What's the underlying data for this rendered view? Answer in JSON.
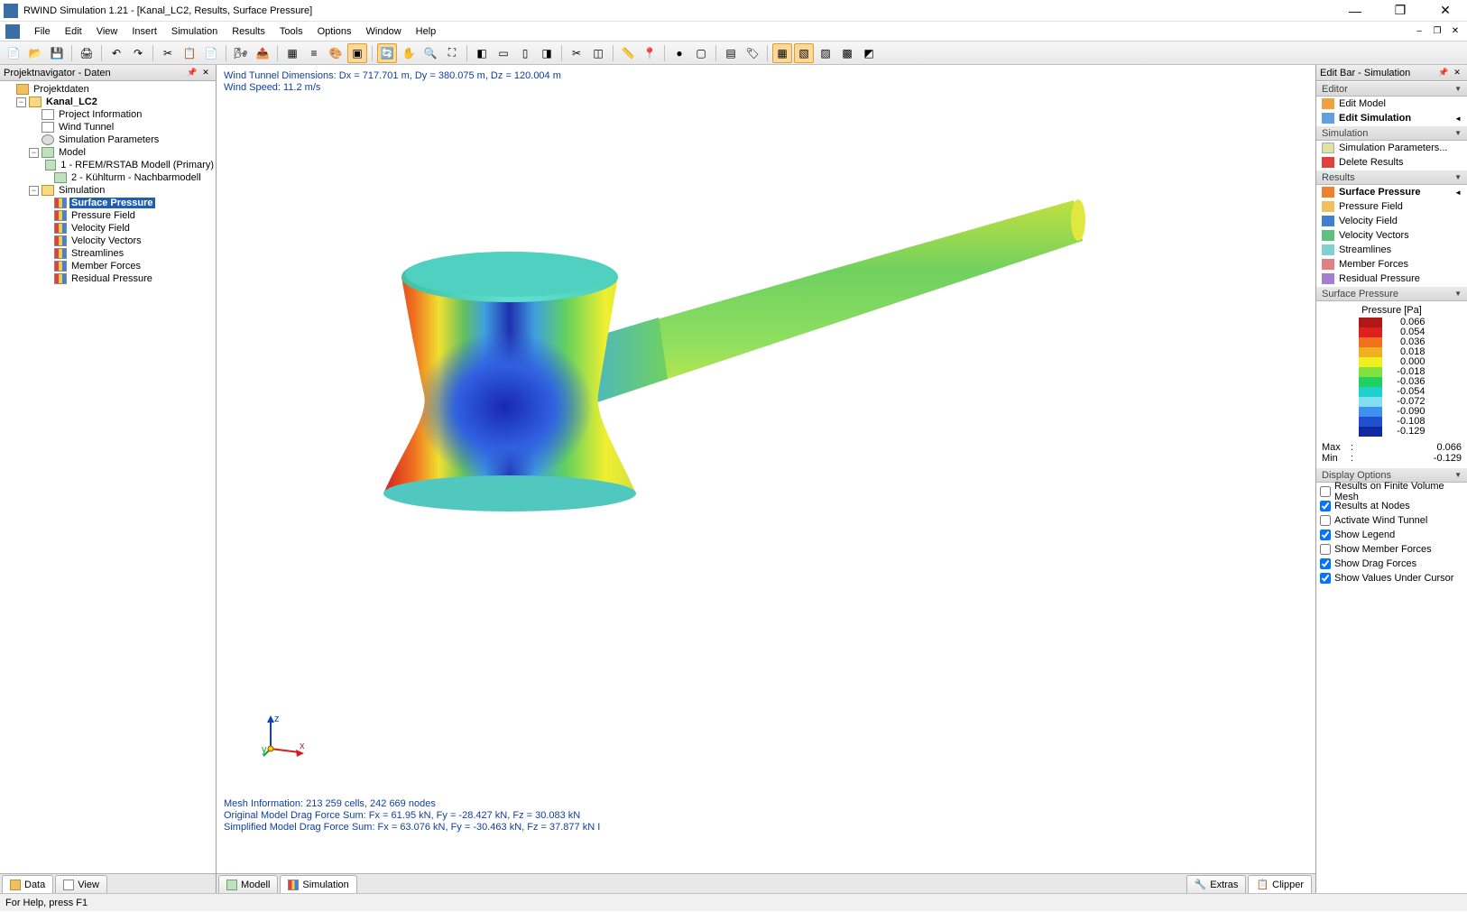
{
  "titlebar": {
    "app_name": "RWIND Simulation 1.21 - [Kanal_LC2, Results, Surface Pressure]"
  },
  "menus": [
    "File",
    "Edit",
    "View",
    "Insert",
    "Simulation",
    "Results",
    "Tools",
    "Options",
    "Window",
    "Help"
  ],
  "left_panel": {
    "title": "Projektnavigator - Daten",
    "tabs": [
      {
        "label": "Data",
        "active": true
      },
      {
        "label": "View",
        "active": false
      }
    ]
  },
  "tree": [
    {
      "depth": 0,
      "exp": "",
      "icon": "folder",
      "label": "Projektdaten"
    },
    {
      "depth": 1,
      "exp": "-",
      "icon": "folder-open",
      "label": "Kanal_LC2",
      "bold": true
    },
    {
      "depth": 2,
      "exp": "",
      "icon": "page",
      "label": "Project Information"
    },
    {
      "depth": 2,
      "exp": "",
      "icon": "page",
      "label": "Wind Tunnel"
    },
    {
      "depth": 2,
      "exp": "",
      "icon": "gear",
      "label": "Simulation Parameters"
    },
    {
      "depth": 2,
      "exp": "-",
      "icon": "cube",
      "label": "Model"
    },
    {
      "depth": 3,
      "exp": "",
      "icon": "cube",
      "label": "1 - RFEM/RSTAB Modell (Primary)"
    },
    {
      "depth": 3,
      "exp": "",
      "icon": "cube",
      "label": "2 - Kühlturm - Nachbarmodell"
    },
    {
      "depth": 2,
      "exp": "-",
      "icon": "folder-open",
      "label": "Simulation"
    },
    {
      "depth": 3,
      "exp": "",
      "icon": "bars",
      "label": "Surface Pressure",
      "selected": true,
      "bold": true
    },
    {
      "depth": 3,
      "exp": "",
      "icon": "bars",
      "label": "Pressure Field"
    },
    {
      "depth": 3,
      "exp": "",
      "icon": "bars",
      "label": "Velocity Field"
    },
    {
      "depth": 3,
      "exp": "",
      "icon": "bars",
      "label": "Velocity Vectors"
    },
    {
      "depth": 3,
      "exp": "",
      "icon": "bars",
      "label": "Streamlines"
    },
    {
      "depth": 3,
      "exp": "",
      "icon": "bars",
      "label": "Member Forces"
    },
    {
      "depth": 3,
      "exp": "",
      "icon": "bars",
      "label": "Residual Pressure"
    }
  ],
  "viewport": {
    "info_top": [
      "Wind Tunnel Dimensions: Dx = 717.701 m, Dy = 380.075 m, Dz = 120.004 m",
      "Wind Speed: 11.2 m/s"
    ],
    "info_bottom": [
      "Mesh Information: 213 259 cells, 242 669 nodes",
      "Original Model Drag Force Sum: Fx = 61.95 kN, Fy = -28.427 kN, Fz = 30.083 kN",
      "Simplified Model Drag Force Sum: Fx = 63.076 kN, Fy = -30.463 kN, Fz = 37.877 kN I"
    ],
    "axis": {
      "x": "x",
      "y": "y",
      "z": "z"
    }
  },
  "vp_tabs": [
    {
      "label": "Modell",
      "active": false
    },
    {
      "label": "Simulation",
      "active": true
    }
  ],
  "right_panel": {
    "title": "Edit Bar - Simulation",
    "sections": {
      "editor": {
        "title": "Editor",
        "items": [
          {
            "icon": "edit",
            "label": "Edit Model"
          },
          {
            "icon": "sim",
            "label": "Edit Simulation",
            "bold": true,
            "arrow": true
          }
        ]
      },
      "simulation": {
        "title": "Simulation",
        "items": [
          {
            "icon": "params",
            "label": "Simulation Parameters..."
          },
          {
            "icon": "del",
            "label": "Delete Results"
          }
        ]
      },
      "results": {
        "title": "Results",
        "items": [
          {
            "icon": "surf",
            "label": "Surface Pressure",
            "bold": true,
            "arrow": true
          },
          {
            "icon": "pfield",
            "label": "Pressure Field"
          },
          {
            "icon": "vfield",
            "label": "Velocity Field"
          },
          {
            "icon": "vvec",
            "label": "Velocity Vectors"
          },
          {
            "icon": "stream",
            "label": "Streamlines"
          },
          {
            "icon": "member",
            "label": "Member Forces"
          },
          {
            "icon": "resid",
            "label": "Residual Pressure"
          }
        ]
      }
    },
    "legend": {
      "section_title": "Surface Pressure",
      "title": "Pressure [Pa]",
      "stops": [
        {
          "color": "#b01818",
          "value": "0.066"
        },
        {
          "color": "#e02020",
          "value": "0.054"
        },
        {
          "color": "#f07020",
          "value": "0.036"
        },
        {
          "color": "#f0b020",
          "value": "0.018"
        },
        {
          "color": "#f0f020",
          "value": "0.000"
        },
        {
          "color": "#80e040",
          "value": "-0.018"
        },
        {
          "color": "#20d060",
          "value": "-0.036"
        },
        {
          "color": "#20d0d0",
          "value": "-0.054"
        },
        {
          "color": "#80e0f0",
          "value": "-0.072"
        },
        {
          "color": "#4090f0",
          "value": "-0.090"
        },
        {
          "color": "#2050d0",
          "value": "-0.108"
        },
        {
          "color": "#1028a0",
          "value": "-0.129"
        }
      ],
      "max": "0.066",
      "min": "-0.129",
      "max_lbl": "Max",
      "min_lbl": "Min"
    },
    "display_section_title": "Display Options",
    "display_options": [
      {
        "label": "Results on Finite Volume Mesh",
        "checked": false
      },
      {
        "label": "Results at Nodes",
        "checked": true
      },
      {
        "label": "Activate Wind Tunnel",
        "checked": false
      },
      {
        "label": "Show Legend",
        "checked": true
      },
      {
        "label": "Show Member Forces",
        "checked": false
      },
      {
        "label": "Show Drag Forces",
        "checked": true
      },
      {
        "label": "Show Values Under Cursor",
        "checked": true
      }
    ],
    "bottom_tabs": [
      {
        "label": "Extras"
      },
      {
        "label": "Clipper",
        "active": true
      }
    ]
  },
  "statusbar": {
    "text": "For Help, press F1"
  },
  "render_colors": {
    "red": "#d02020",
    "orange": "#f08020",
    "yellow": "#f0f030",
    "green": "#50d060",
    "cyan": "#40d0d0",
    "ltblue": "#60b0f0",
    "blue": "#2040c0",
    "top": "#60d8d8"
  }
}
